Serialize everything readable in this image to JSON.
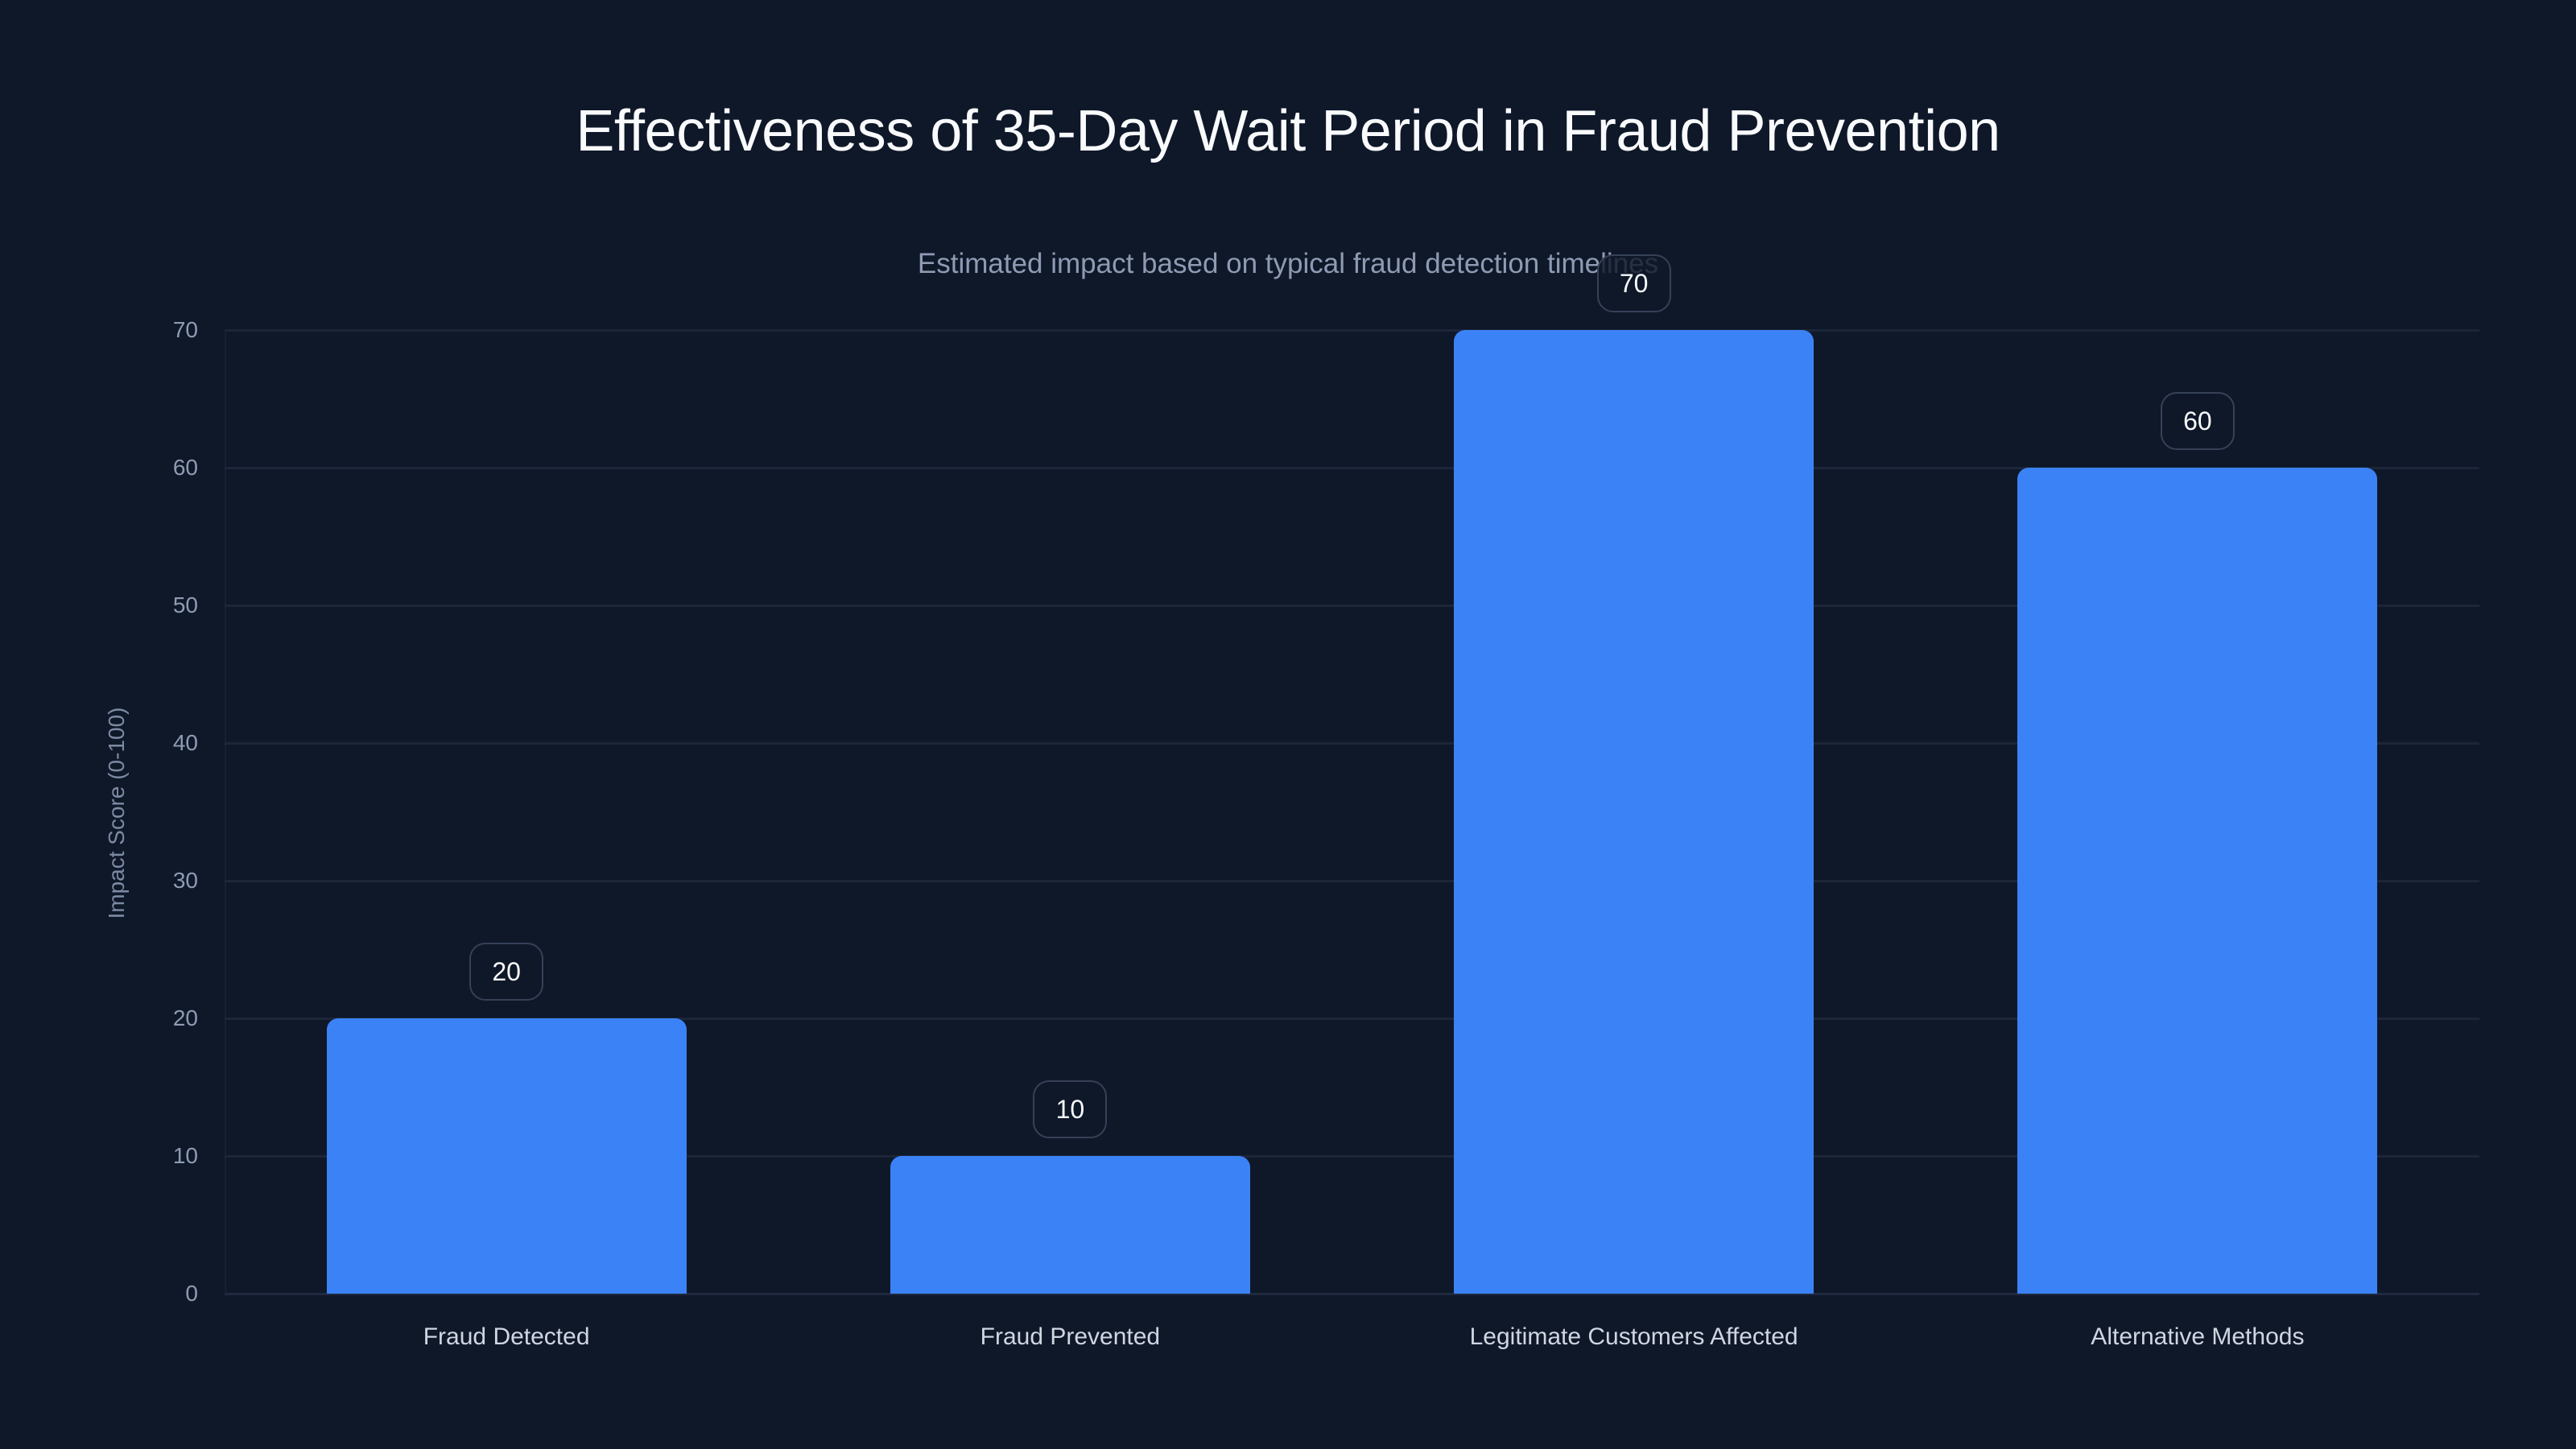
{
  "chart_data": {
    "type": "bar",
    "title": "Effectiveness of 35-Day Wait Period in Fraud Prevention",
    "subtitle": "Estimated impact based on typical fraud detection timelines",
    "xlabel": "",
    "ylabel": "Impact Score (0-100)",
    "categories": [
      "Fraud Detected",
      "Fraud Prevented",
      "Legitimate Customers Affected",
      "Alternative Methods"
    ],
    "values": [
      20,
      10,
      70,
      60
    ],
    "value_labels": [
      "20",
      "10",
      "70",
      "60"
    ],
    "ylim": [
      0,
      70
    ],
    "yticks": [
      0,
      10,
      20,
      30,
      40,
      50,
      60,
      70
    ],
    "ytick_labels": [
      "0",
      "10",
      "20",
      "30",
      "40",
      "50",
      "60",
      "70"
    ],
    "grid": true,
    "legend": null,
    "colors": {
      "background": "#0f1829",
      "bar": "#3b82f6",
      "gridline": "#1c2639",
      "title": "#f8fafc",
      "subtitle": "#8e9bb3",
      "tick_label": "#8e9bb3",
      "category_label": "#cfd6e2",
      "badge_border": "#354157"
    }
  }
}
